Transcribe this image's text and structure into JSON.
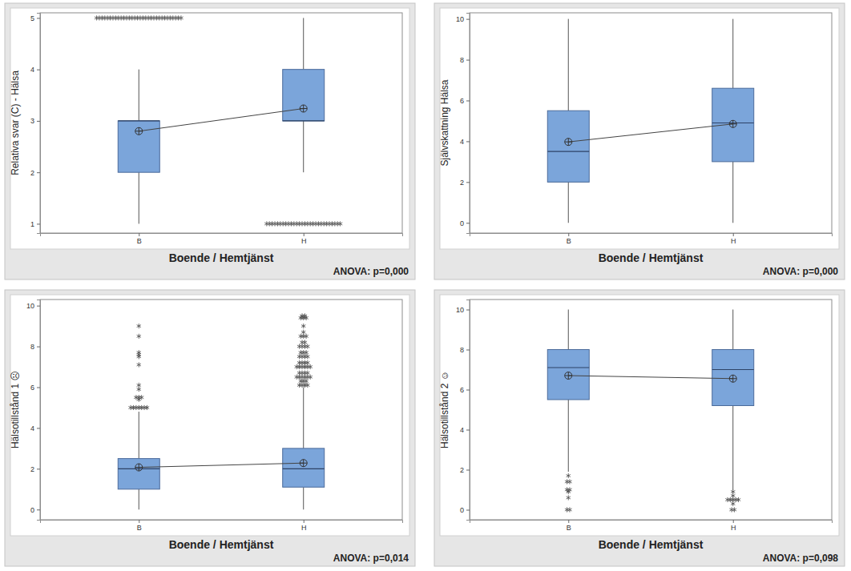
{
  "chart_data": [
    {
      "type": "box",
      "y_label": "Relativa svar (C) - Hälsa",
      "x_label": "Boende / Hemtjänst",
      "annotation": "ANOVA: p=0,000",
      "categories": [
        "B",
        "H"
      ],
      "ylim": [
        0.82,
        5.1
      ],
      "yticks": [
        1,
        2,
        3,
        4,
        5
      ],
      "color": "#7ba5da",
      "boxes": [
        {
          "q1": 2,
          "median": 3,
          "q3": 3,
          "whisker_low": 1,
          "whisker_high": 4,
          "mean": 2.8,
          "outliers": [
            5,
            5,
            5,
            5,
            5,
            5,
            5,
            5,
            5,
            5,
            5,
            5,
            5,
            5,
            5,
            5,
            5,
            5,
            5,
            5,
            5,
            5,
            5,
            5,
            5,
            5,
            5,
            5,
            5,
            5,
            5,
            5
          ]
        },
        {
          "q1": 3,
          "median": 3,
          "q3": 4,
          "whisker_low": 2,
          "whisker_high": 5,
          "mean": 3.24,
          "outliers": [
            1,
            1,
            1,
            1,
            1,
            1,
            1,
            1,
            1,
            1,
            1,
            1,
            1,
            1,
            1,
            1,
            1,
            1,
            1,
            1,
            1,
            1,
            1,
            1,
            1,
            1,
            1,
            1
          ]
        }
      ]
    },
    {
      "type": "box",
      "y_label": "Självskattning Hälsa",
      "x_label": "Boende / Hemtjänst",
      "annotation": "ANOVA: p=0,000",
      "categories": [
        "B",
        "H"
      ],
      "ylim": [
        -0.5,
        10.3
      ],
      "yticks": [
        0,
        2,
        4,
        6,
        8,
        10
      ],
      "color": "#7ba5da",
      "boxes": [
        {
          "q1": 2,
          "median": 3.5,
          "q3": 5.5,
          "whisker_low": 0,
          "whisker_high": 10,
          "mean": 3.97,
          "outliers": []
        },
        {
          "q1": 3,
          "median": 4.9,
          "q3": 6.6,
          "whisker_low": 0,
          "whisker_high": 10,
          "mean": 4.85,
          "outliers": []
        }
      ]
    },
    {
      "type": "box",
      "y_label": "Hälsotillstånd 1 ☹",
      "x_label": "Boende / Hemtjänst",
      "annotation": "ANOVA: p=0,014",
      "categories": [
        "B",
        "H"
      ],
      "ylim": [
        -0.5,
        10.3
      ],
      "yticks": [
        0,
        2,
        4,
        6,
        8,
        10
      ],
      "color": "#7ba5da",
      "boxes": [
        {
          "q1": 1,
          "median": 2,
          "q3": 2.5,
          "whisker_low": 0,
          "whisker_high": 4.8,
          "mean": 2.07,
          "outliers": [
            5,
            5,
            5,
            5,
            5,
            5,
            5,
            5.4,
            5.5,
            5.5,
            5.5,
            5.9,
            6.1,
            7.1,
            7.5,
            7.6,
            7.7,
            8.5,
            9
          ]
        },
        {
          "q1": 1.1,
          "median": 2,
          "q3": 3,
          "whisker_low": 0,
          "whisker_high": 6,
          "mean": 2.28,
          "outliers": [
            6.1,
            6.1,
            6.1,
            6.1,
            6.3,
            6.3,
            6.3,
            6.5,
            6.5,
            6.5,
            6.5,
            6.5,
            6.5,
            6.7,
            6.7,
            6.7,
            6.7,
            7,
            7,
            7,
            7,
            7,
            7,
            7.2,
            7.2,
            7.2,
            7.2,
            7.5,
            7.5,
            7.5,
            7.5,
            7.7,
            7.7,
            7.7,
            8,
            8,
            8,
            8,
            8.2,
            8.2,
            8.5,
            8.5,
            8.5,
            8.7,
            9,
            9.4,
            9.4,
            9.4,
            9.5,
            9.5
          ]
        }
      ]
    },
    {
      "type": "box",
      "y_label": "Hälsotillstånd 2 ☺",
      "x_label": "Boende / Hemtjänst",
      "annotation": "ANOVA: p=0,098",
      "categories": [
        "B",
        "H"
      ],
      "ylim": [
        -0.5,
        10.5
      ],
      "yticks": [
        0,
        2,
        4,
        6,
        8,
        10
      ],
      "color": "#7ba5da",
      "boxes": [
        {
          "q1": 5.5,
          "median": 7.1,
          "q3": 8,
          "whisker_low": 1.9,
          "whisker_high": 10,
          "mean": 6.7,
          "outliers": [
            1.7,
            1.4,
            1.4,
            1,
            1,
            0.9,
            0.6,
            0,
            0
          ]
        },
        {
          "q1": 5.2,
          "median": 7,
          "q3": 8,
          "whisker_low": 1,
          "whisker_high": 10,
          "mean": 6.55,
          "outliers": [
            0.9,
            0.7,
            0.5,
            0.5,
            0.5,
            0.5,
            0.5,
            0.3,
            0,
            0
          ]
        }
      ]
    }
  ]
}
